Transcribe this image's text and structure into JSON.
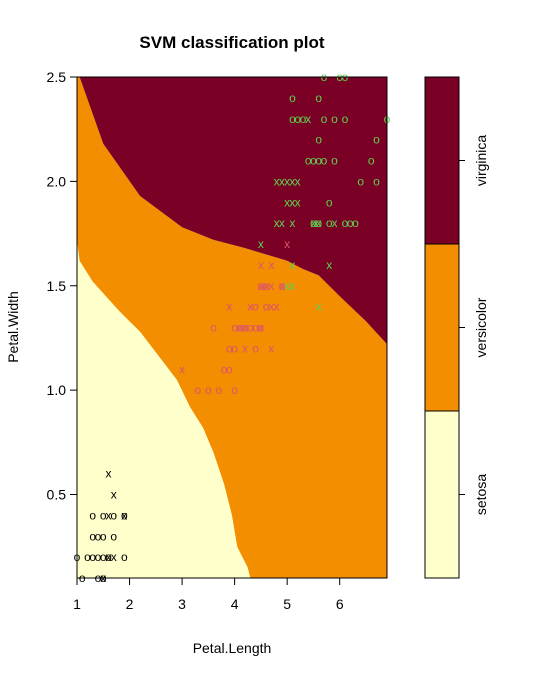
{
  "chart_data": {
    "type": "scatter",
    "title": "SVM classification plot",
    "xlabel": "Petal.Length",
    "ylabel": "Petal.Width",
    "xlim": [
      1.0,
      6.9
    ],
    "ylim": [
      0.1,
      2.5
    ],
    "x_ticks": [
      "1",
      "2",
      "3",
      "4",
      "5",
      "6"
    ],
    "y_ticks": [
      "0.5",
      "1.0",
      "1.5",
      "2.0",
      "2.5"
    ],
    "x_tick_values": [
      1,
      2,
      3,
      4,
      5,
      6
    ],
    "y_tick_values": [
      0.5,
      1.0,
      1.5,
      2.0,
      2.5
    ],
    "region_colors": {
      "setosa": "#FFFFCC",
      "versicolor": "#F28E00",
      "virginica": "#7A0026"
    },
    "class_colors": {
      "setosa": "#000000",
      "versicolor": "#DF536B",
      "virginica": "#61D04F"
    },
    "marker_symbols": {
      "data": "o",
      "support_vector": "x"
    },
    "legend": {
      "placement": "right",
      "classes": [
        "setosa",
        "versicolor",
        "virginica"
      ]
    },
    "boundaries": {
      "setosa_versicolor": [
        [
          1.0,
          1.72
        ],
        [
          1.05,
          1.62
        ],
        [
          1.3,
          1.52
        ],
        [
          1.8,
          1.38
        ],
        [
          2.2,
          1.28
        ],
        [
          2.9,
          1.05
        ],
        [
          3.15,
          0.92
        ],
        [
          3.4,
          0.82
        ],
        [
          3.6,
          0.7
        ],
        [
          3.8,
          0.55
        ],
        [
          3.95,
          0.4
        ],
        [
          4.05,
          0.25
        ],
        [
          4.25,
          0.15
        ],
        [
          4.3,
          0.1
        ]
      ],
      "versicolor_virginica": [
        [
          1.05,
          2.5
        ],
        [
          1.5,
          2.18
        ],
        [
          2.2,
          1.93
        ],
        [
          3.0,
          1.78
        ],
        [
          3.6,
          1.72
        ],
        [
          4.2,
          1.68
        ],
        [
          5.0,
          1.62
        ],
        [
          5.3,
          1.58
        ],
        [
          5.6,
          1.55
        ],
        [
          6.0,
          1.45
        ],
        [
          6.5,
          1.33
        ],
        [
          6.9,
          1.22
        ]
      ]
    },
    "series": [
      {
        "name": "setosa",
        "points": [
          {
            "x": 1.5,
            "y": 0.4,
            "m": "o"
          },
          {
            "x": 1.7,
            "y": 0.4,
            "m": "o"
          },
          {
            "x": 1.3,
            "y": 0.4,
            "m": "o"
          },
          {
            "x": 1.9,
            "y": 0.4,
            "m": "o"
          },
          {
            "x": 1.3,
            "y": 0.3,
            "m": "o"
          },
          {
            "x": 1.4,
            "y": 0.3,
            "m": "o"
          },
          {
            "x": 1.7,
            "y": 0.3,
            "m": "o"
          },
          {
            "x": 1.5,
            "y": 0.3,
            "m": "o"
          },
          {
            "x": 1.6,
            "y": 0.2,
            "m": "o"
          },
          {
            "x": 1.4,
            "y": 0.2,
            "m": "o"
          },
          {
            "x": 1.5,
            "y": 0.2,
            "m": "o"
          },
          {
            "x": 1.3,
            "y": 0.2,
            "m": "o"
          },
          {
            "x": 1.9,
            "y": 0.2,
            "m": "o"
          },
          {
            "x": 1.0,
            "y": 0.2,
            "m": "o"
          },
          {
            "x": 1.2,
            "y": 0.2,
            "m": "o"
          },
          {
            "x": 1.4,
            "y": 0.1,
            "m": "o"
          },
          {
            "x": 1.5,
            "y": 0.1,
            "m": "o"
          },
          {
            "x": 1.1,
            "y": 0.1,
            "m": "o"
          },
          {
            "x": 1.6,
            "y": 0.6,
            "m": "x"
          },
          {
            "x": 1.7,
            "y": 0.5,
            "m": "x"
          },
          {
            "x": 1.9,
            "y": 0.4,
            "m": "x"
          },
          {
            "x": 1.6,
            "y": 0.4,
            "m": "x"
          },
          {
            "x": 1.6,
            "y": 0.2,
            "m": "x"
          },
          {
            "x": 1.7,
            "y": 0.2,
            "m": "x"
          },
          {
            "x": 1.5,
            "y": 0.1,
            "m": "x"
          }
        ]
      },
      {
        "name": "versicolor",
        "points": [
          {
            "x": 3.3,
            "y": 1.0,
            "m": "o"
          },
          {
            "x": 3.5,
            "y": 1.0,
            "m": "o"
          },
          {
            "x": 3.7,
            "y": 1.0,
            "m": "o"
          },
          {
            "x": 4.0,
            "y": 1.0,
            "m": "o"
          },
          {
            "x": 3.8,
            "y": 1.1,
            "m": "o"
          },
          {
            "x": 3.9,
            "y": 1.1,
            "m": "o"
          },
          {
            "x": 3.9,
            "y": 1.2,
            "m": "o"
          },
          {
            "x": 4.0,
            "y": 1.2,
            "m": "o"
          },
          {
            "x": 4.4,
            "y": 1.2,
            "m": "o"
          },
          {
            "x": 3.6,
            "y": 1.3,
            "m": "o"
          },
          {
            "x": 4.0,
            "y": 1.3,
            "m": "o"
          },
          {
            "x": 4.1,
            "y": 1.3,
            "m": "o"
          },
          {
            "x": 4.2,
            "y": 1.3,
            "m": "o"
          },
          {
            "x": 4.3,
            "y": 1.3,
            "m": "o"
          },
          {
            "x": 4.5,
            "y": 1.3,
            "m": "o"
          },
          {
            "x": 4.4,
            "y": 1.3,
            "m": "o"
          },
          {
            "x": 4.4,
            "y": 1.4,
            "m": "o"
          },
          {
            "x": 4.6,
            "y": 1.4,
            "m": "o"
          },
          {
            "x": 4.5,
            "y": 1.5,
            "m": "o"
          },
          {
            "x": 4.6,
            "y": 1.5,
            "m": "o"
          },
          {
            "x": 4.9,
            "y": 1.5,
            "m": "o"
          },
          {
            "x": 3.0,
            "y": 1.1,
            "m": "x"
          },
          {
            "x": 3.9,
            "y": 1.4,
            "m": "x"
          },
          {
            "x": 4.2,
            "y": 1.3,
            "m": "x"
          },
          {
            "x": 4.1,
            "y": 1.3,
            "m": "x"
          },
          {
            "x": 4.5,
            "y": 1.3,
            "m": "x"
          },
          {
            "x": 4.3,
            "y": 1.4,
            "m": "x"
          },
          {
            "x": 4.7,
            "y": 1.4,
            "m": "x"
          },
          {
            "x": 4.8,
            "y": 1.4,
            "m": "x"
          },
          {
            "x": 4.5,
            "y": 1.5,
            "m": "x"
          },
          {
            "x": 4.6,
            "y": 1.5,
            "m": "x"
          },
          {
            "x": 4.7,
            "y": 1.5,
            "m": "x"
          },
          {
            "x": 4.9,
            "y": 1.5,
            "m": "x"
          },
          {
            "x": 4.5,
            "y": 1.6,
            "m": "x"
          },
          {
            "x": 4.7,
            "y": 1.6,
            "m": "x"
          },
          {
            "x": 5.0,
            "y": 1.7,
            "m": "x"
          },
          {
            "x": 4.2,
            "y": 1.2,
            "m": "x"
          },
          {
            "x": 4.7,
            "y": 1.2,
            "m": "x"
          }
        ]
      },
      {
        "name": "virginica",
        "points": [
          {
            "x": 5.7,
            "y": 2.5,
            "m": "o"
          },
          {
            "x": 6.0,
            "y": 2.5,
            "m": "o"
          },
          {
            "x": 6.1,
            "y": 2.5,
            "m": "o"
          },
          {
            "x": 5.1,
            "y": 2.4,
            "m": "o"
          },
          {
            "x": 5.6,
            "y": 2.4,
            "m": "o"
          },
          {
            "x": 5.1,
            "y": 2.3,
            "m": "o"
          },
          {
            "x": 5.2,
            "y": 2.3,
            "m": "o"
          },
          {
            "x": 5.3,
            "y": 2.3,
            "m": "o"
          },
          {
            "x": 5.7,
            "y": 2.3,
            "m": "o"
          },
          {
            "x": 5.9,
            "y": 2.3,
            "m": "o"
          },
          {
            "x": 6.1,
            "y": 2.3,
            "m": "o"
          },
          {
            "x": 6.9,
            "y": 2.3,
            "m": "o"
          },
          {
            "x": 5.6,
            "y": 2.2,
            "m": "o"
          },
          {
            "x": 6.7,
            "y": 2.2,
            "m": "o"
          },
          {
            "x": 5.4,
            "y": 2.1,
            "m": "o"
          },
          {
            "x": 5.5,
            "y": 2.1,
            "m": "o"
          },
          {
            "x": 5.6,
            "y": 2.1,
            "m": "o"
          },
          {
            "x": 5.7,
            "y": 2.1,
            "m": "o"
          },
          {
            "x": 5.9,
            "y": 2.1,
            "m": "o"
          },
          {
            "x": 6.6,
            "y": 2.1,
            "m": "o"
          },
          {
            "x": 6.4,
            "y": 2.0,
            "m": "o"
          },
          {
            "x": 6.7,
            "y": 2.0,
            "m": "o"
          },
          {
            "x": 6.1,
            "y": 1.8,
            "m": "o"
          },
          {
            "x": 5.8,
            "y": 1.8,
            "m": "o"
          },
          {
            "x": 6.3,
            "y": 1.8,
            "m": "o"
          },
          {
            "x": 5.8,
            "y": 1.9,
            "m": "o"
          },
          {
            "x": 5.5,
            "y": 1.8,
            "m": "o"
          },
          {
            "x": 5.6,
            "y": 1.8,
            "m": "o"
          },
          {
            "x": 6.2,
            "y": 1.8,
            "m": "o"
          },
          {
            "x": 5.4,
            "y": 2.3,
            "m": "x"
          },
          {
            "x": 4.8,
            "y": 2.0,
            "m": "x"
          },
          {
            "x": 4.9,
            "y": 2.0,
            "m": "x"
          },
          {
            "x": 5.0,
            "y": 2.0,
            "m": "x"
          },
          {
            "x": 5.1,
            "y": 2.0,
            "m": "x"
          },
          {
            "x": 5.2,
            "y": 2.0,
            "m": "x"
          },
          {
            "x": 5.0,
            "y": 1.9,
            "m": "x"
          },
          {
            "x": 5.1,
            "y": 1.9,
            "m": "x"
          },
          {
            "x": 5.2,
            "y": 1.9,
            "m": "x"
          },
          {
            "x": 4.8,
            "y": 1.8,
            "m": "x"
          },
          {
            "x": 4.9,
            "y": 1.8,
            "m": "x"
          },
          {
            "x": 5.1,
            "y": 1.8,
            "m": "x"
          },
          {
            "x": 5.5,
            "y": 1.8,
            "m": "x"
          },
          {
            "x": 5.6,
            "y": 1.8,
            "m": "x"
          },
          {
            "x": 5.9,
            "y": 1.8,
            "m": "x"
          },
          {
            "x": 4.5,
            "y": 1.7,
            "m": "x"
          },
          {
            "x": 5.1,
            "y": 1.6,
            "m": "x"
          },
          {
            "x": 5.8,
            "y": 1.6,
            "m": "x"
          },
          {
            "x": 5.0,
            "y": 1.5,
            "m": "x"
          },
          {
            "x": 5.1,
            "y": 1.5,
            "m": "x"
          },
          {
            "x": 5.6,
            "y": 1.4,
            "m": "x"
          }
        ]
      }
    ]
  }
}
